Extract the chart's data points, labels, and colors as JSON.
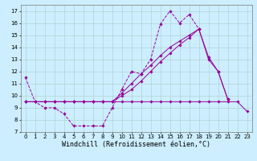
{
  "xlabel": "Windchill (Refroidissement éolien,°C)",
  "background_color": "#cceeff",
  "grid_color": "#aacccc",
  "line_color": "#990099",
  "x": [
    0,
    1,
    2,
    3,
    4,
    5,
    6,
    7,
    8,
    9,
    10,
    11,
    12,
    13,
    14,
    15,
    16,
    17,
    18,
    19,
    20,
    21,
    22,
    23
  ],
  "line1": [
    11.5,
    9.5,
    9.0,
    9.0,
    8.5,
    7.5,
    7.5,
    7.5,
    7.5,
    9.0,
    10.5,
    12.0,
    11.8,
    13.0,
    15.9,
    17.0,
    16.0,
    16.7,
    15.5,
    null,
    null,
    null,
    null,
    null
  ],
  "line2": [
    9.5,
    9.5,
    9.5,
    9.5,
    9.5,
    9.5,
    9.5,
    9.5,
    9.5,
    9.5,
    9.5,
    9.5,
    9.5,
    9.5,
    9.5,
    9.5,
    9.5,
    9.5,
    9.5,
    9.5,
    9.5,
    9.5,
    9.5,
    8.7
  ],
  "line3": [
    9.5,
    9.5,
    9.5,
    9.5,
    9.5,
    9.5,
    9.5,
    9.5,
    9.5,
    9.5,
    10.0,
    10.5,
    11.2,
    12.0,
    12.8,
    13.5,
    14.2,
    14.8,
    15.5,
    13.0,
    12.0,
    9.7,
    null,
    null
  ],
  "line4": [
    9.5,
    9.5,
    9.5,
    9.5,
    9.5,
    9.5,
    9.5,
    9.5,
    9.5,
    9.5,
    10.2,
    11.0,
    11.8,
    12.5,
    13.3,
    14.0,
    14.5,
    15.0,
    15.5,
    13.2,
    12.0,
    9.7,
    null,
    null
  ],
  "xlim": [
    -0.5,
    23.5
  ],
  "ylim": [
    7,
    17.5
  ],
  "yticks": [
    7,
    8,
    9,
    10,
    11,
    12,
    13,
    14,
    15,
    16,
    17
  ],
  "xticks": [
    0,
    1,
    2,
    3,
    4,
    5,
    6,
    7,
    8,
    9,
    10,
    11,
    12,
    13,
    14,
    15,
    16,
    17,
    18,
    19,
    20,
    21,
    22,
    23
  ],
  "tick_fontsize": 5.0,
  "xlabel_fontsize": 6.0
}
